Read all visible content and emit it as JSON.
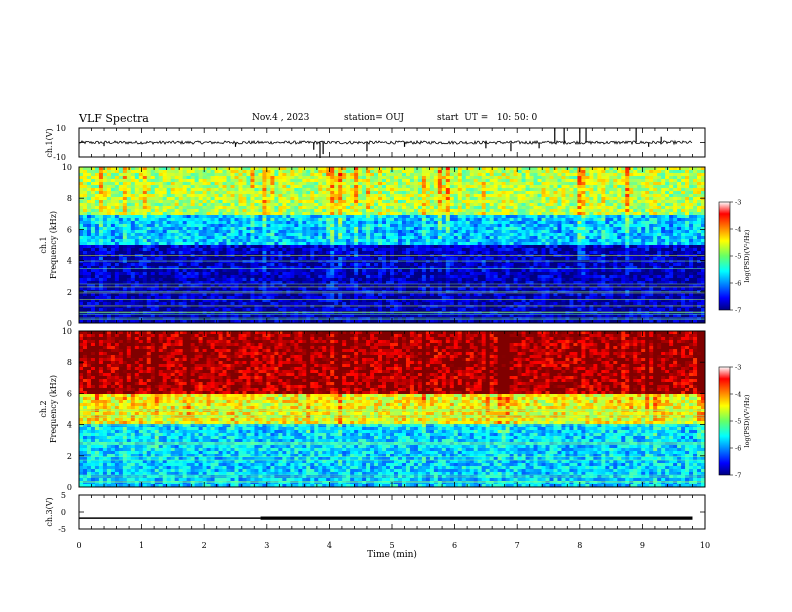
{
  "header": {
    "title": "VLF Spectra",
    "date": "Nov.4 , 2023",
    "station": "station= OUJ",
    "start": "start  UT =   10: 50: 0"
  },
  "chart_data": [
    {
      "type": "line",
      "panel": "waveform-ch1",
      "ylabel": "ch.1(V)",
      "ylim": [
        -10,
        10
      ],
      "yticks": [
        "10",
        "-10"
      ],
      "xlim": [
        0,
        10
      ],
      "baseline": 0,
      "data_end_min": 9.8,
      "spikes": [
        {
          "x": 0.4,
          "y": -2.5
        },
        {
          "x": 2.5,
          "y": -3
        },
        {
          "x": 3.75,
          "y": -5
        },
        {
          "x": 3.85,
          "y": -11
        },
        {
          "x": 3.9,
          "y": -8
        },
        {
          "x": 4.6,
          "y": -6
        },
        {
          "x": 5.2,
          "y": -3
        },
        {
          "x": 6.5,
          "y": -4
        },
        {
          "x": 6.9,
          "y": -6
        },
        {
          "x": 7.35,
          "y": -4
        },
        {
          "x": 7.6,
          "y": 10
        },
        {
          "x": 7.75,
          "y": 10
        },
        {
          "x": 8.0,
          "y": 10
        },
        {
          "x": 8.1,
          "y": 10
        },
        {
          "x": 8.9,
          "y": 10
        },
        {
          "x": 9.3,
          "y": 4
        },
        {
          "x": 9.1,
          "y": -3
        }
      ]
    },
    {
      "type": "heatmap",
      "panel": "spectrogram-ch1",
      "ylabel": "ch.1\nFrequency (kHz)",
      "ylim": [
        0,
        10
      ],
      "yticks": [
        "0",
        "2",
        "4",
        "6",
        "8",
        "10"
      ],
      "xlim": [
        0,
        10
      ],
      "colorbar": {
        "label": "log(PSD)(V²/Hz)",
        "range": [
          -7,
          -3
        ],
        "ticks": [
          "-3",
          "-4",
          "-5",
          "-6",
          "-7"
        ]
      },
      "description_levels": {
        "low_band_0_5kHz": -6.8,
        "mid_band_5_7kHz": -5.8,
        "high_band_7_10kHz": -4.9
      }
    },
    {
      "type": "heatmap",
      "panel": "spectrogram-ch2",
      "ylabel": "ch.2\nFrequency (kHz)",
      "ylim": [
        0,
        10
      ],
      "yticks": [
        "0",
        "2",
        "4",
        "6",
        "8",
        "10"
      ],
      "xlim": [
        0,
        10
      ],
      "colorbar": {
        "label": "log(PSD)(V²/Hz)",
        "range": [
          -7,
          -3
        ],
        "ticks": [
          "-3",
          "-4",
          "-5",
          "-6",
          "-7"
        ]
      },
      "description_levels": {
        "low_band_0_4kHz": -5.7,
        "mid_band_4_6kHz": -4.6,
        "high_band_6_10kHz": -3.3
      }
    },
    {
      "type": "line",
      "panel": "waveform-ch3",
      "ylabel": "ch.3(V)",
      "ylim": [
        -5,
        5
      ],
      "yticks": [
        "5",
        "0",
        "-5"
      ],
      "xlim": [
        0,
        10
      ],
      "xlabel": "Time (min)",
      "xticks": [
        "0",
        "1",
        "2",
        "3",
        "4",
        "5",
        "6",
        "7",
        "8",
        "9",
        "10"
      ],
      "segments": [
        {
          "x0": 0,
          "x1": 2.9,
          "y": -1.8,
          "width": "thin"
        },
        {
          "x0": 2.9,
          "x1": 9.8,
          "y": -1.8,
          "width": "thick"
        }
      ]
    }
  ]
}
